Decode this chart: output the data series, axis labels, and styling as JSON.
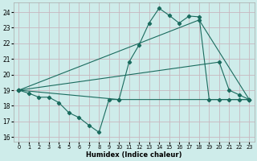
{
  "xlabel": "Humidex (Indice chaleur)",
  "bg_color": "#ceecea",
  "grid_color": "#c8b8c0",
  "line_color": "#1a6b5e",
  "xlim": [
    -0.5,
    23.5
  ],
  "ylim": [
    15.7,
    24.6
  ],
  "yticks": [
    16,
    17,
    18,
    19,
    20,
    21,
    22,
    23,
    24
  ],
  "xticks": [
    0,
    1,
    2,
    3,
    4,
    5,
    6,
    7,
    8,
    9,
    10,
    11,
    12,
    13,
    14,
    15,
    16,
    17,
    18,
    19,
    20,
    21,
    22,
    23
  ],
  "line1_x": [
    0,
    1,
    2,
    3,
    4,
    5,
    6,
    7,
    8,
    9,
    10,
    11,
    12,
    13,
    14,
    15,
    16,
    17,
    18,
    19,
    20,
    21,
    22,
    23
  ],
  "line1_y": [
    19.0,
    18.8,
    18.55,
    18.55,
    18.2,
    17.55,
    17.25,
    16.75,
    16.3,
    18.4,
    18.4,
    20.8,
    21.9,
    23.3,
    24.25,
    23.8,
    23.3,
    23.75,
    23.7,
    18.4,
    18.4,
    18.4,
    18.4,
    18.4
  ],
  "line2_x": [
    0,
    18,
    23
  ],
  "line2_y": [
    19.0,
    23.5,
    18.4
  ],
  "line3_x": [
    0,
    20,
    21,
    22,
    23
  ],
  "line3_y": [
    19.0,
    20.8,
    19.0,
    18.7,
    18.4
  ],
  "line4_x": [
    0,
    10,
    23
  ],
  "line4_y": [
    19.0,
    18.4,
    18.4
  ]
}
